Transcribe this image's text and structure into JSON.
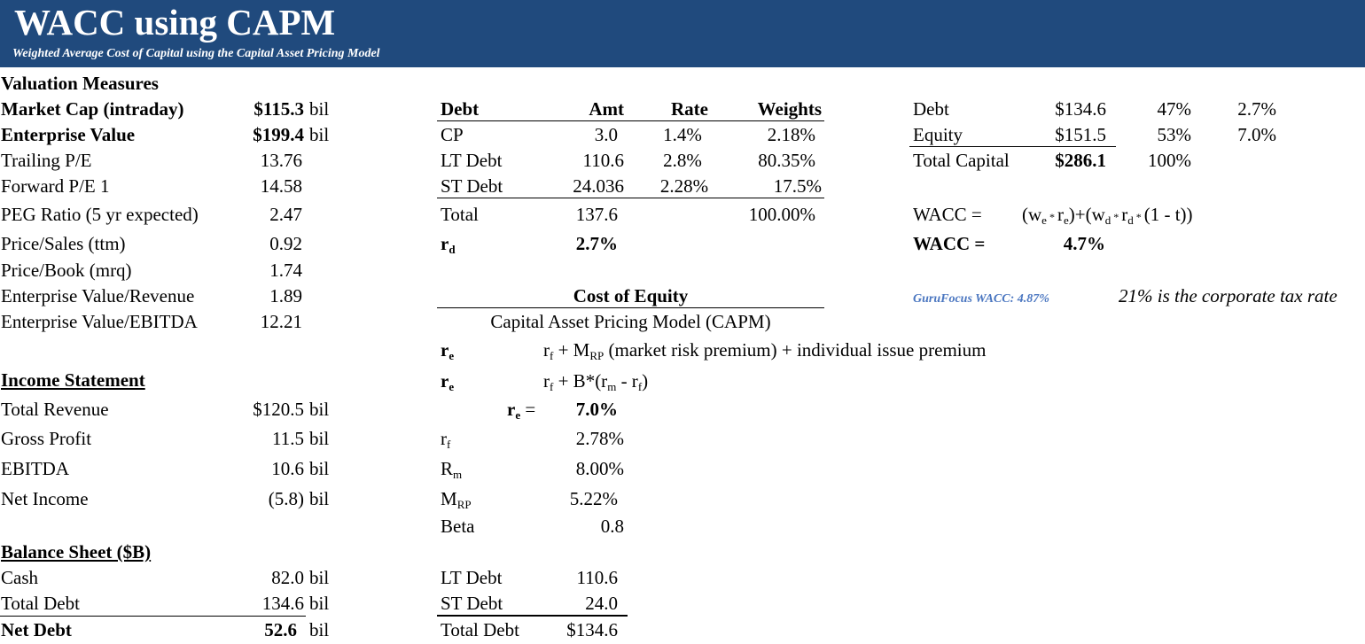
{
  "header": {
    "title": "WACC using CAPM",
    "subtitle": "Weighted Average Cost of Capital using the Capital Asset Pricing Model"
  },
  "valuation": {
    "heading": "Valuation Measures",
    "rows": [
      {
        "label": "Market Cap (intraday)",
        "value": "$115.3",
        "unit": "bil"
      },
      {
        "label": "Enterprise Value",
        "value": "$199.4",
        "unit": "bil"
      },
      {
        "label": "Trailing P/E",
        "value": "13.76",
        "unit": ""
      },
      {
        "label": "Forward P/E 1",
        "value": "14.58",
        "unit": ""
      },
      {
        "label": "PEG Ratio (5 yr expected)",
        "value": "2.47",
        "unit": ""
      },
      {
        "label": "Price/Sales (ttm)",
        "value": "0.92",
        "unit": ""
      },
      {
        "label": "Price/Book (mrq)",
        "value": "1.74",
        "unit": ""
      },
      {
        "label": "Enterprise Value/Revenue",
        "value": "1.89",
        "unit": ""
      },
      {
        "label": "Enterprise Value/EBITDA",
        "value": "12.21",
        "unit": ""
      }
    ]
  },
  "income": {
    "heading": "Income Statement",
    "rows": [
      {
        "label": "Total Revenue",
        "value": "$120.5",
        "unit": "bil"
      },
      {
        "label": "Gross Profit",
        "value": "11.5",
        "unit": "bil"
      },
      {
        "label": "EBITDA",
        "value": "10.6",
        "unit": "bil"
      },
      {
        "label": "Net Income",
        "value": "(5.8)",
        "unit": "bil"
      }
    ]
  },
  "balance": {
    "heading": "Balance Sheet ($B)",
    "rows": [
      {
        "label": "Cash",
        "value": "82.0",
        "unit": "bil"
      },
      {
        "label": "Total Debt",
        "value": "134.6",
        "unit": "bil"
      },
      {
        "label": "Net Debt",
        "value": "52.6",
        "unit": "bil"
      }
    ]
  },
  "debt_table": {
    "headers": {
      "debt": "Debt",
      "amt": "Amt",
      "rate": "Rate",
      "weights": "Weights"
    },
    "rows": [
      {
        "name": "CP",
        "amt": "3.0",
        "rate": "1.4%",
        "weight": "2.18%"
      },
      {
        "name": "LT Debt",
        "amt": "110.6",
        "rate": "2.8%",
        "weight": "80.35%"
      },
      {
        "name": "ST Debt",
        "amt": "24.036",
        "rate": "2.28%",
        "weight": "17.5%"
      }
    ],
    "total": {
      "label": "Total",
      "amt": "137.6",
      "weight": "100.00%"
    },
    "rd": {
      "label": "r",
      "sub": "d",
      "value": "2.7%"
    }
  },
  "equity": {
    "heading": "Cost of Equity",
    "capm": "Capital Asset Pricing Model (CAPM)",
    "re_label": "r",
    "re_sub": "e",
    "f1": {
      "p1": "r",
      "s1": "f",
      "p2": " + M",
      "s2": "RP",
      "p3": " (market risk premium) + individual issue premium"
    },
    "f2": {
      "p1": "r",
      "s1": "f",
      "p2": " + B*(r",
      "s2": "m",
      "p3": " - r",
      "s3": "f",
      "p4": ")"
    },
    "re_eq": "=",
    "re_value": "7.0%",
    "inputs": [
      {
        "label": "r",
        "sub": "f",
        "value": "2.78%"
      },
      {
        "label": "R",
        "sub": "m",
        "value": "8.00%"
      },
      {
        "label": "M",
        "sub": "RP",
        "value": "5.22%"
      },
      {
        "label": "Beta",
        "sub": "",
        "value": "0.8"
      }
    ]
  },
  "debt_summary": {
    "rows": [
      {
        "label": "LT Debt",
        "value": "110.6"
      },
      {
        "label": "ST Debt",
        "value": "24.0"
      },
      {
        "label": "Total Debt",
        "value": "$134.6"
      }
    ]
  },
  "capital": {
    "rows": [
      {
        "label": "Debt",
        "value": "$134.6",
        "weight": "47%",
        "cost": "2.7%"
      },
      {
        "label": "Equity",
        "value": "$151.5",
        "weight": "53%",
        "cost": "7.0%"
      },
      {
        "label": "Total Capital",
        "value": "$286.1",
        "weight": "100%",
        "cost": ""
      }
    ]
  },
  "wacc": {
    "label": "WACC =",
    "formula": {
      "a": "(w",
      "as": "e",
      "b": " * ",
      "c": "r",
      "cs": "e",
      "d": ")+(w",
      "ds": "d",
      "e": " * ",
      "f": "r",
      "fs": "d",
      "g": " * ",
      "h": "(1 - t))"
    },
    "result_label": "WACC =",
    "result": "4.7%",
    "gurufocus": "GuruFocus WACC: 4.87%",
    "tax_note": "21% is the corporate tax rate"
  }
}
